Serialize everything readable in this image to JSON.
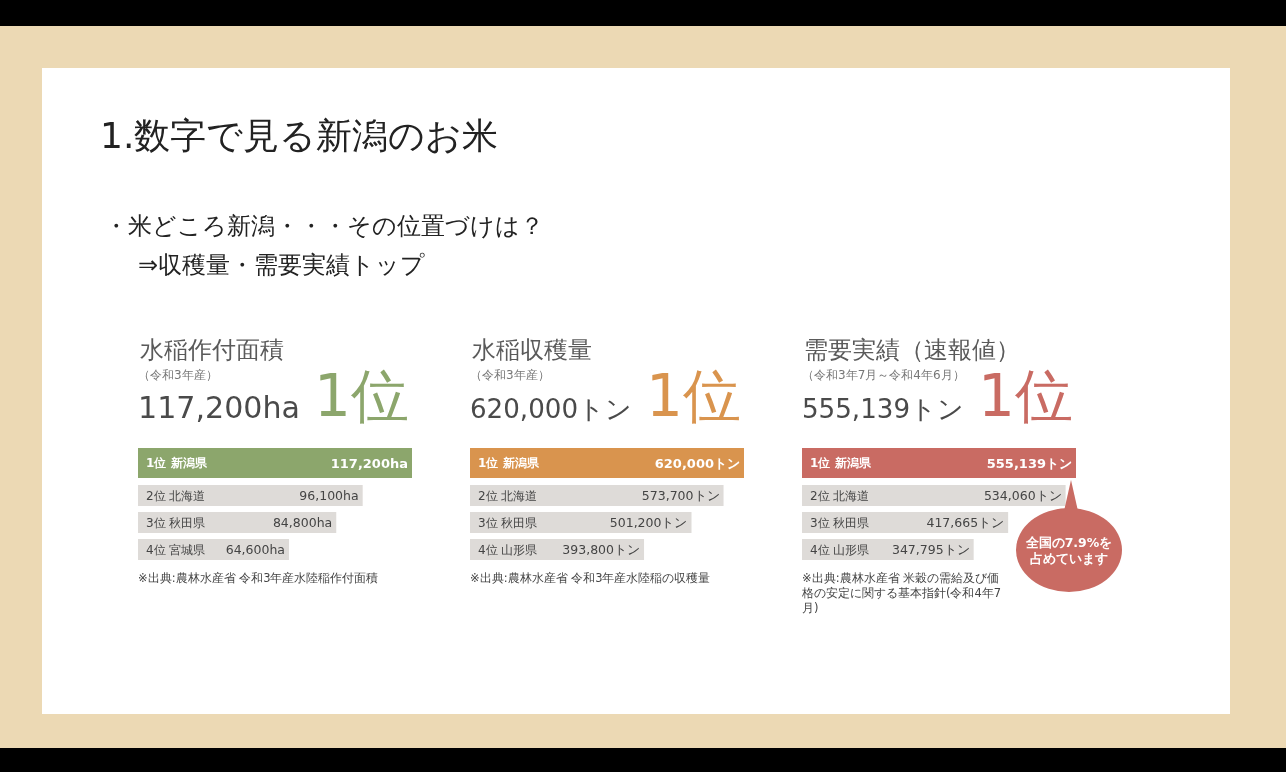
{
  "chart_data": [
    {
      "type": "other",
      "title": "1.数字で見る新潟のお米",
      "annotations": [
        "・米どころ新潟・・・その位置づけは？",
        "⇒収穫量・需要実績トップ"
      ]
    },
    {
      "type": "bar",
      "orientation": "horizontal",
      "title": "水稲作付面積",
      "subtitle": "（令和3年産）",
      "categories": [
        "1位 新潟県",
        "2位 北海道",
        "3位 秋田県",
        "4位 宮城県"
      ],
      "values": [
        117200,
        96100,
        84800,
        64600
      ],
      "value_labels": [
        "117,200ha",
        "96,100ha",
        "84,800ha",
        "64,600ha"
      ],
      "colors": [
        "#8ca66c",
        "#dedbd8",
        "#dedbd8",
        "#dedbd8"
      ],
      "annotations": [
        "117,200ha",
        "1位",
        "※出典:農林水産省 令和3年産水陸稲作付面積"
      ]
    },
    {
      "type": "bar",
      "orientation": "horizontal",
      "title": "水稲収穫量",
      "subtitle": "（令和3年産）",
      "categories": [
        "1位 新潟県",
        "2位 北海道",
        "3位 秋田県",
        "4位 山形県"
      ],
      "values": [
        620000,
        573700,
        501200,
        393800
      ],
      "value_labels": [
        "620,000トン",
        "573,700トン",
        "501,200トン",
        "393,800トン"
      ],
      "colors": [
        "#d9944e",
        "#dedbd8",
        "#dedbd8",
        "#dedbd8"
      ],
      "annotations": [
        "620,000トン",
        "1位",
        "※出典:農林水産省 令和3年産水陸稲の収穫量"
      ]
    },
    {
      "type": "bar",
      "orientation": "horizontal",
      "title": "需要実績（速報値）",
      "subtitle": "（令和3年7月～令和4年6月）",
      "categories": [
        "1位 新潟県",
        "2位 北海道",
        "3位 秋田県",
        "4位 山形県"
      ],
      "values": [
        555139,
        534060,
        417665,
        347795
      ],
      "value_labels": [
        "555,139トン",
        "534,060トン",
        "417,665トン",
        "347,795トン"
      ],
      "colors": [
        "#c96b63",
        "#dedbd8",
        "#dedbd8",
        "#dedbd8"
      ],
      "annotations": [
        "555,139トン",
        "1位",
        "※出典:農林水産省 米穀の需給及び価格の安定に関する基本指針(令和4年7月)",
        "全国の7.9%を占めています"
      ]
    }
  ]
}
